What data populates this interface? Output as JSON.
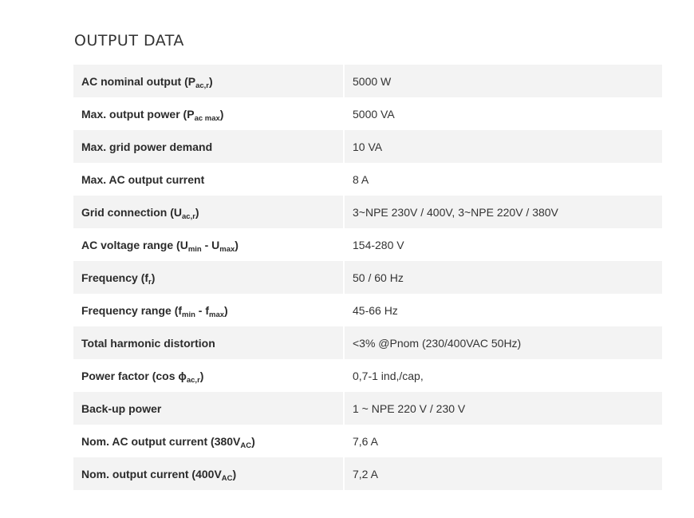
{
  "title": "OUTPUT DATA",
  "rows": [
    {
      "label": [
        {
          "t": "AC nominal output (P"
        },
        {
          "t": "ac,r",
          "sub": true
        },
        {
          "t": ")"
        }
      ],
      "value": "5000 W"
    },
    {
      "label": [
        {
          "t": "Max. output power (P"
        },
        {
          "t": "ac max",
          "sub": true
        },
        {
          "t": ")"
        }
      ],
      "value": "5000 VA"
    },
    {
      "label": [
        {
          "t": "Max. grid power demand"
        }
      ],
      "value": "10 VA"
    },
    {
      "label": [
        {
          "t": "Max. AC output current"
        }
      ],
      "value": "8 A"
    },
    {
      "label": [
        {
          "t": "Grid connection (U"
        },
        {
          "t": "ac,r",
          "sub": true
        },
        {
          "t": ")"
        }
      ],
      "value": "3~NPE 230V / 400V, 3~NPE 220V / 380V"
    },
    {
      "label": [
        {
          "t": "AC voltage range (U"
        },
        {
          "t": "min",
          "sub": true
        },
        {
          "t": " - U"
        },
        {
          "t": "max",
          "sub": true
        },
        {
          "t": ")"
        }
      ],
      "value": "154-280 V"
    },
    {
      "label": [
        {
          "t": "Frequency (f"
        },
        {
          "t": "r",
          "sub": true
        },
        {
          "t": ")"
        }
      ],
      "value": "50 / 60 Hz"
    },
    {
      "label": [
        {
          "t": "Frequency range (f"
        },
        {
          "t": "min",
          "sub": true
        },
        {
          "t": " - f"
        },
        {
          "t": "max",
          "sub": true
        },
        {
          "t": ")"
        }
      ],
      "value": "45-66 Hz"
    },
    {
      "label": [
        {
          "t": "Total harmonic distortion"
        }
      ],
      "value": "<3% @Pnom (230/400VAC 50Hz)"
    },
    {
      "label": [
        {
          "t": "Power factor (cos ϕ"
        },
        {
          "t": "ac,r",
          "sub": true
        },
        {
          "t": ")"
        }
      ],
      "value": "0,7-1 ind,/cap,"
    },
    {
      "label": [
        {
          "t": "Back-up power"
        }
      ],
      "value": "1 ~ NPE 220 V / 230 V"
    },
    {
      "label": [
        {
          "t": "Nom. AC output current (380V"
        },
        {
          "t": "AC",
          "sub": true
        },
        {
          "t": ")"
        }
      ],
      "value": "7,6 A"
    },
    {
      "label": [
        {
          "t": "Nom. output current (400V"
        },
        {
          "t": "AC",
          "sub": true
        },
        {
          "t": ")"
        }
      ],
      "value": "7,2 A"
    }
  ]
}
